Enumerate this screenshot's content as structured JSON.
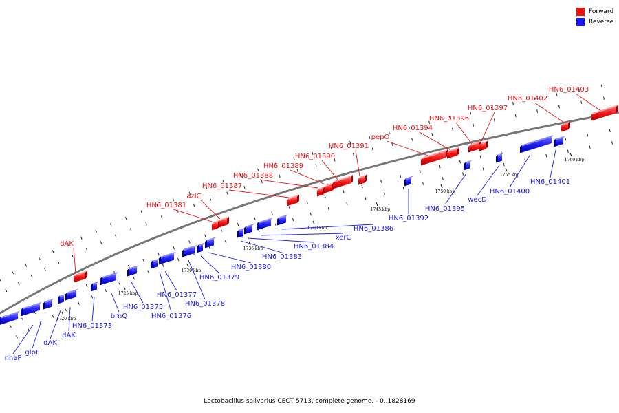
{
  "legend": {
    "forward": {
      "label": "Forward",
      "color": "#ee1111"
    },
    "reverse": {
      "label": "Reverse",
      "color": "#1a1aee"
    }
  },
  "caption": "Lactobacillus salivarius CECT 5713, complete genome. - 0..1828169",
  "colors": {
    "forward": "#ee1111",
    "reverse": "#1a1aee",
    "backbone": "#777777"
  },
  "scale_labels": [
    "1720 kbp",
    "1725 kbp",
    "1730 kbp",
    "1735 kbp",
    "1740 kbp",
    "1745 kbp",
    "1750 kbp",
    "1755 kbp",
    "1760 kbp"
  ],
  "forward_genes": [
    "dAK",
    "HN6_01381",
    "azlC",
    "HN6_01387",
    "HN6_01388",
    "HN6_01389",
    "HN6_01390",
    "HN6_01391",
    "pepO",
    "HN6_01394",
    "HN6_01396",
    "HN6_01397",
    "HN6_01402",
    "HN6_01403"
  ],
  "reverse_genes": [
    "nhaP",
    "glpF",
    "dAK",
    "dAK",
    "HN6_01373",
    "brnQ",
    "HN6_01375",
    "HN6_01376",
    "HN6_01377",
    "HN6_01378",
    "HN6_01379",
    "HN6_01380",
    "HN6_01383",
    "HN6_01384",
    "xerC",
    "HN6_01386",
    "HN6_01392",
    "HN6_01395",
    "wecD",
    "HN6_01400",
    "HN6_01401"
  ]
}
